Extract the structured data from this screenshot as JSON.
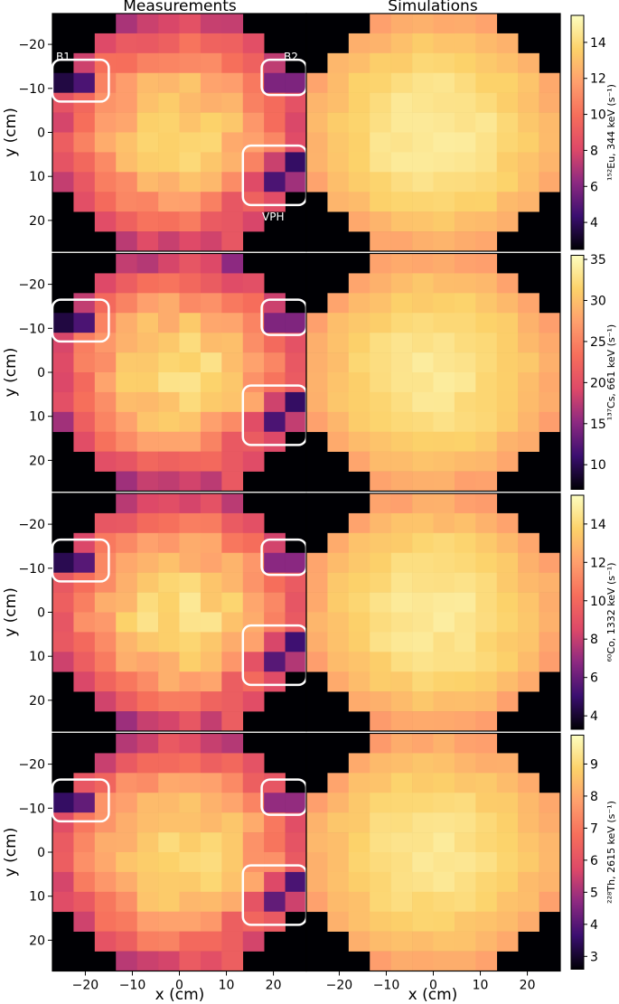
{
  "column_titles": [
    "Measurements",
    "Simulations"
  ],
  "axis_labels": {
    "x": "x (cm)",
    "y": "y (cm)"
  },
  "region_labels": {
    "b1": "B1",
    "b2": "B2",
    "vph": "VPH"
  },
  "colormap": [
    "#000004",
    "#3b0f70",
    "#8c2981",
    "#de4968",
    "#f66e5b",
    "#fe9f6d",
    "#fcd26a",
    "#fcfdbf"
  ],
  "chart_data": {
    "type": "heatmap",
    "grid": "12x12 pixels of 4.5 cm",
    "x_ticks": [
      -20,
      -10,
      0,
      10,
      20
    ],
    "y_ticks": [
      -20,
      -10,
      0,
      10,
      20
    ],
    "xlabel": "x (cm)",
    "ylabel": "y (cm)",
    "columns": [
      "Measurements",
      "Simulations"
    ],
    "panels": [
      {
        "colorbar_label": "¹⁵²Eu, 344 keV (s⁻¹)",
        "colorbar_ticks": [
          4,
          6,
          8,
          10,
          12,
          14
        ],
        "range": [
          2.5,
          15.5
        ],
        "meas_min": 3,
        "meas_max": 14.5,
        "sim_min": 10.5,
        "sim_max": 15
      },
      {
        "colorbar_label": "¹³⁷Cs, 661 keV (s⁻¹)",
        "colorbar_ticks": [
          10,
          15,
          20,
          25,
          30,
          35
        ],
        "range": [
          7,
          35.5
        ],
        "meas_min": 8,
        "meas_max": 34,
        "sim_min": 24,
        "sim_max": 34
      },
      {
        "colorbar_label": "⁶⁰Co, 1332 keV (s⁻¹)",
        "colorbar_ticks": [
          4,
          6,
          8,
          10,
          12,
          14
        ],
        "range": [
          3.3,
          15.5
        ],
        "meas_min": 4,
        "meas_max": 15,
        "sim_min": 10.5,
        "sim_max": 15
      },
      {
        "colorbar_label": "²²⁸Th, 2615 keV (s⁻¹)",
        "colorbar_ticks": [
          3,
          4,
          5,
          6,
          7,
          8,
          9
        ],
        "range": [
          2.6,
          9.9
        ],
        "meas_min": 3.2,
        "meas_max": 9.5,
        "sim_min": 7,
        "sim_max": 9.5
      }
    ]
  }
}
